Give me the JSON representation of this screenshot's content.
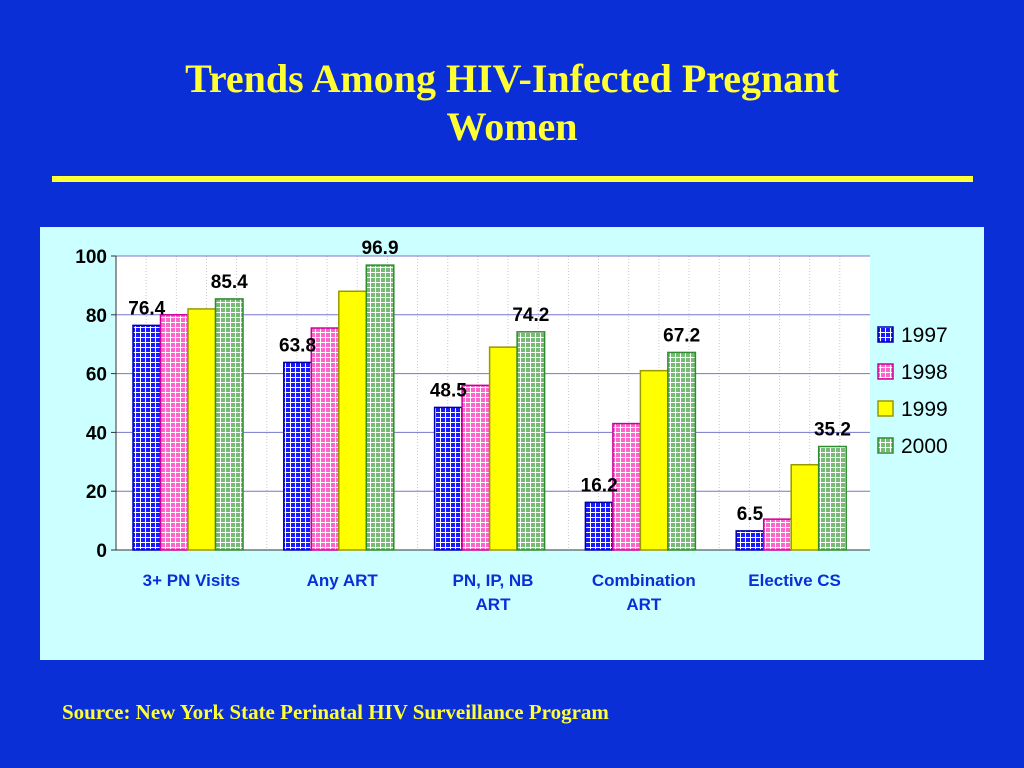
{
  "slide": {
    "title_line1": "Trends Among HIV-Infected Pregnant",
    "title_line2": "Women",
    "source": "Source: New York State Perinatal HIV Surveillance Program"
  },
  "chart_data": {
    "type": "bar",
    "title": "",
    "xlabel": "",
    "ylabel": "",
    "ylim": [
      0,
      100
    ],
    "yticks": [
      0,
      20,
      40,
      60,
      80,
      100
    ],
    "grid": true,
    "legend_position": "right",
    "categories": [
      [
        "3+ PN Visits"
      ],
      [
        "Any ART"
      ],
      [
        "PN, IP, NB",
        "ART"
      ],
      [
        "Combination",
        "ART"
      ],
      [
        "Elective CS"
      ]
    ],
    "series": [
      {
        "name": "1997",
        "color": "#1a1aff",
        "pattern": "grid",
        "values": [
          76.4,
          63.8,
          48.5,
          16.2,
          6.5
        ]
      },
      {
        "name": "1998",
        "color": "#ff66cc",
        "pattern": "grid",
        "values": [
          80,
          75.5,
          56,
          43,
          10.5
        ]
      },
      {
        "name": "1999",
        "color": "#ffff00",
        "pattern": "solid",
        "values": [
          82,
          88,
          69,
          61,
          29
        ]
      },
      {
        "name": "2000",
        "color": "#77bb77",
        "pattern": "grid",
        "values": [
          85.4,
          96.9,
          74.2,
          67.2,
          35.2
        ]
      }
    ],
    "data_labels": [
      {
        "category": 0,
        "series": 0,
        "text": "76.4"
      },
      {
        "category": 0,
        "series": 3,
        "text": "85.4"
      },
      {
        "category": 1,
        "series": 0,
        "text": "63.8"
      },
      {
        "category": 1,
        "series": 3,
        "text": "96.9"
      },
      {
        "category": 2,
        "series": 0,
        "text": "48.5"
      },
      {
        "category": 2,
        "series": 3,
        "text": "74.2"
      },
      {
        "category": 3,
        "series": 0,
        "text": "16.2"
      },
      {
        "category": 3,
        "series": 3,
        "text": "67.2"
      },
      {
        "category": 4,
        "series": 0,
        "text": "6.5"
      },
      {
        "category": 4,
        "series": 3,
        "text": "35.2"
      }
    ]
  }
}
